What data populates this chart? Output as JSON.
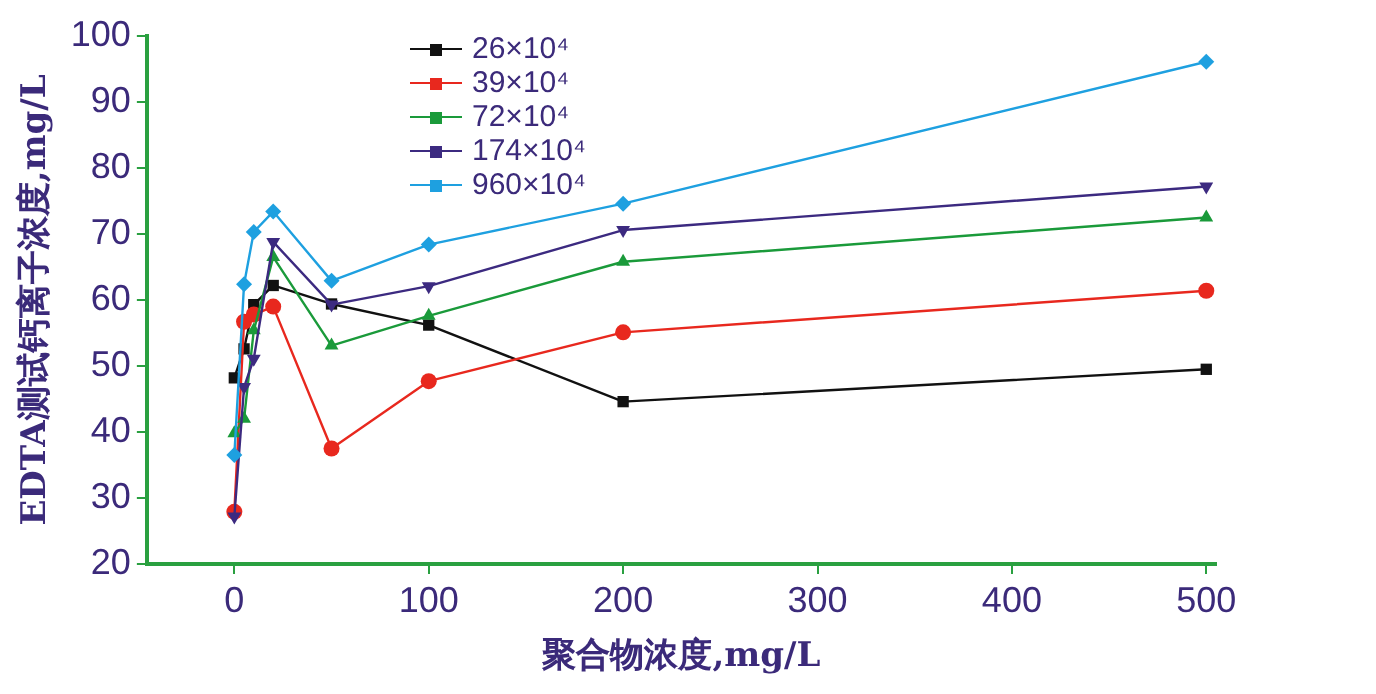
{
  "chart_data": {
    "type": "line",
    "xlabel": "聚合物浓度,mg/L",
    "ylabel": "EDTA测试钙离子浓度,mg/L",
    "x": [
      0,
      5,
      10,
      20,
      50,
      100,
      200,
      500
    ],
    "xlim": [
      -45,
      505
    ],
    "xticks": [
      0,
      100,
      200,
      300,
      400,
      500
    ],
    "ylim": [
      20,
      100
    ],
    "yticks": [
      20,
      30,
      40,
      50,
      60,
      70,
      80,
      90,
      100
    ],
    "grid": false,
    "legend": "top left",
    "line_style": "solid",
    "series": [
      {
        "name": "26×10⁴",
        "color": "#111111",
        "marker": "square",
        "values": [
          48.2,
          52.6,
          59.3,
          62.2,
          59.4,
          56.2,
          44.6,
          49.5
        ]
      },
      {
        "name": "39×10⁴",
        "color": "#e8281e",
        "marker": "circle",
        "values": [
          27.9,
          56.7,
          57.8,
          59.0,
          37.5,
          47.7,
          55.1,
          61.4
        ]
      },
      {
        "name": "72×10⁴",
        "color": "#1a9a3a",
        "marker": "triangle",
        "values": [
          39.8,
          42.0,
          55.4,
          66.5,
          53.1,
          57.6,
          65.8,
          72.5
        ]
      },
      {
        "name": "174×10⁴",
        "color": "#3c2a80",
        "marker": "triangle-down",
        "values": [
          27.2,
          46.8,
          51.1,
          68.8,
          59.3,
          62.1,
          70.6,
          77.2
        ]
      },
      {
        "name": "960×10⁴",
        "color": "#1ea0e0",
        "marker": "diamond",
        "values": [
          36.5,
          62.4,
          70.3,
          73.4,
          62.9,
          68.4,
          74.6,
          96.1
        ]
      }
    ]
  }
}
